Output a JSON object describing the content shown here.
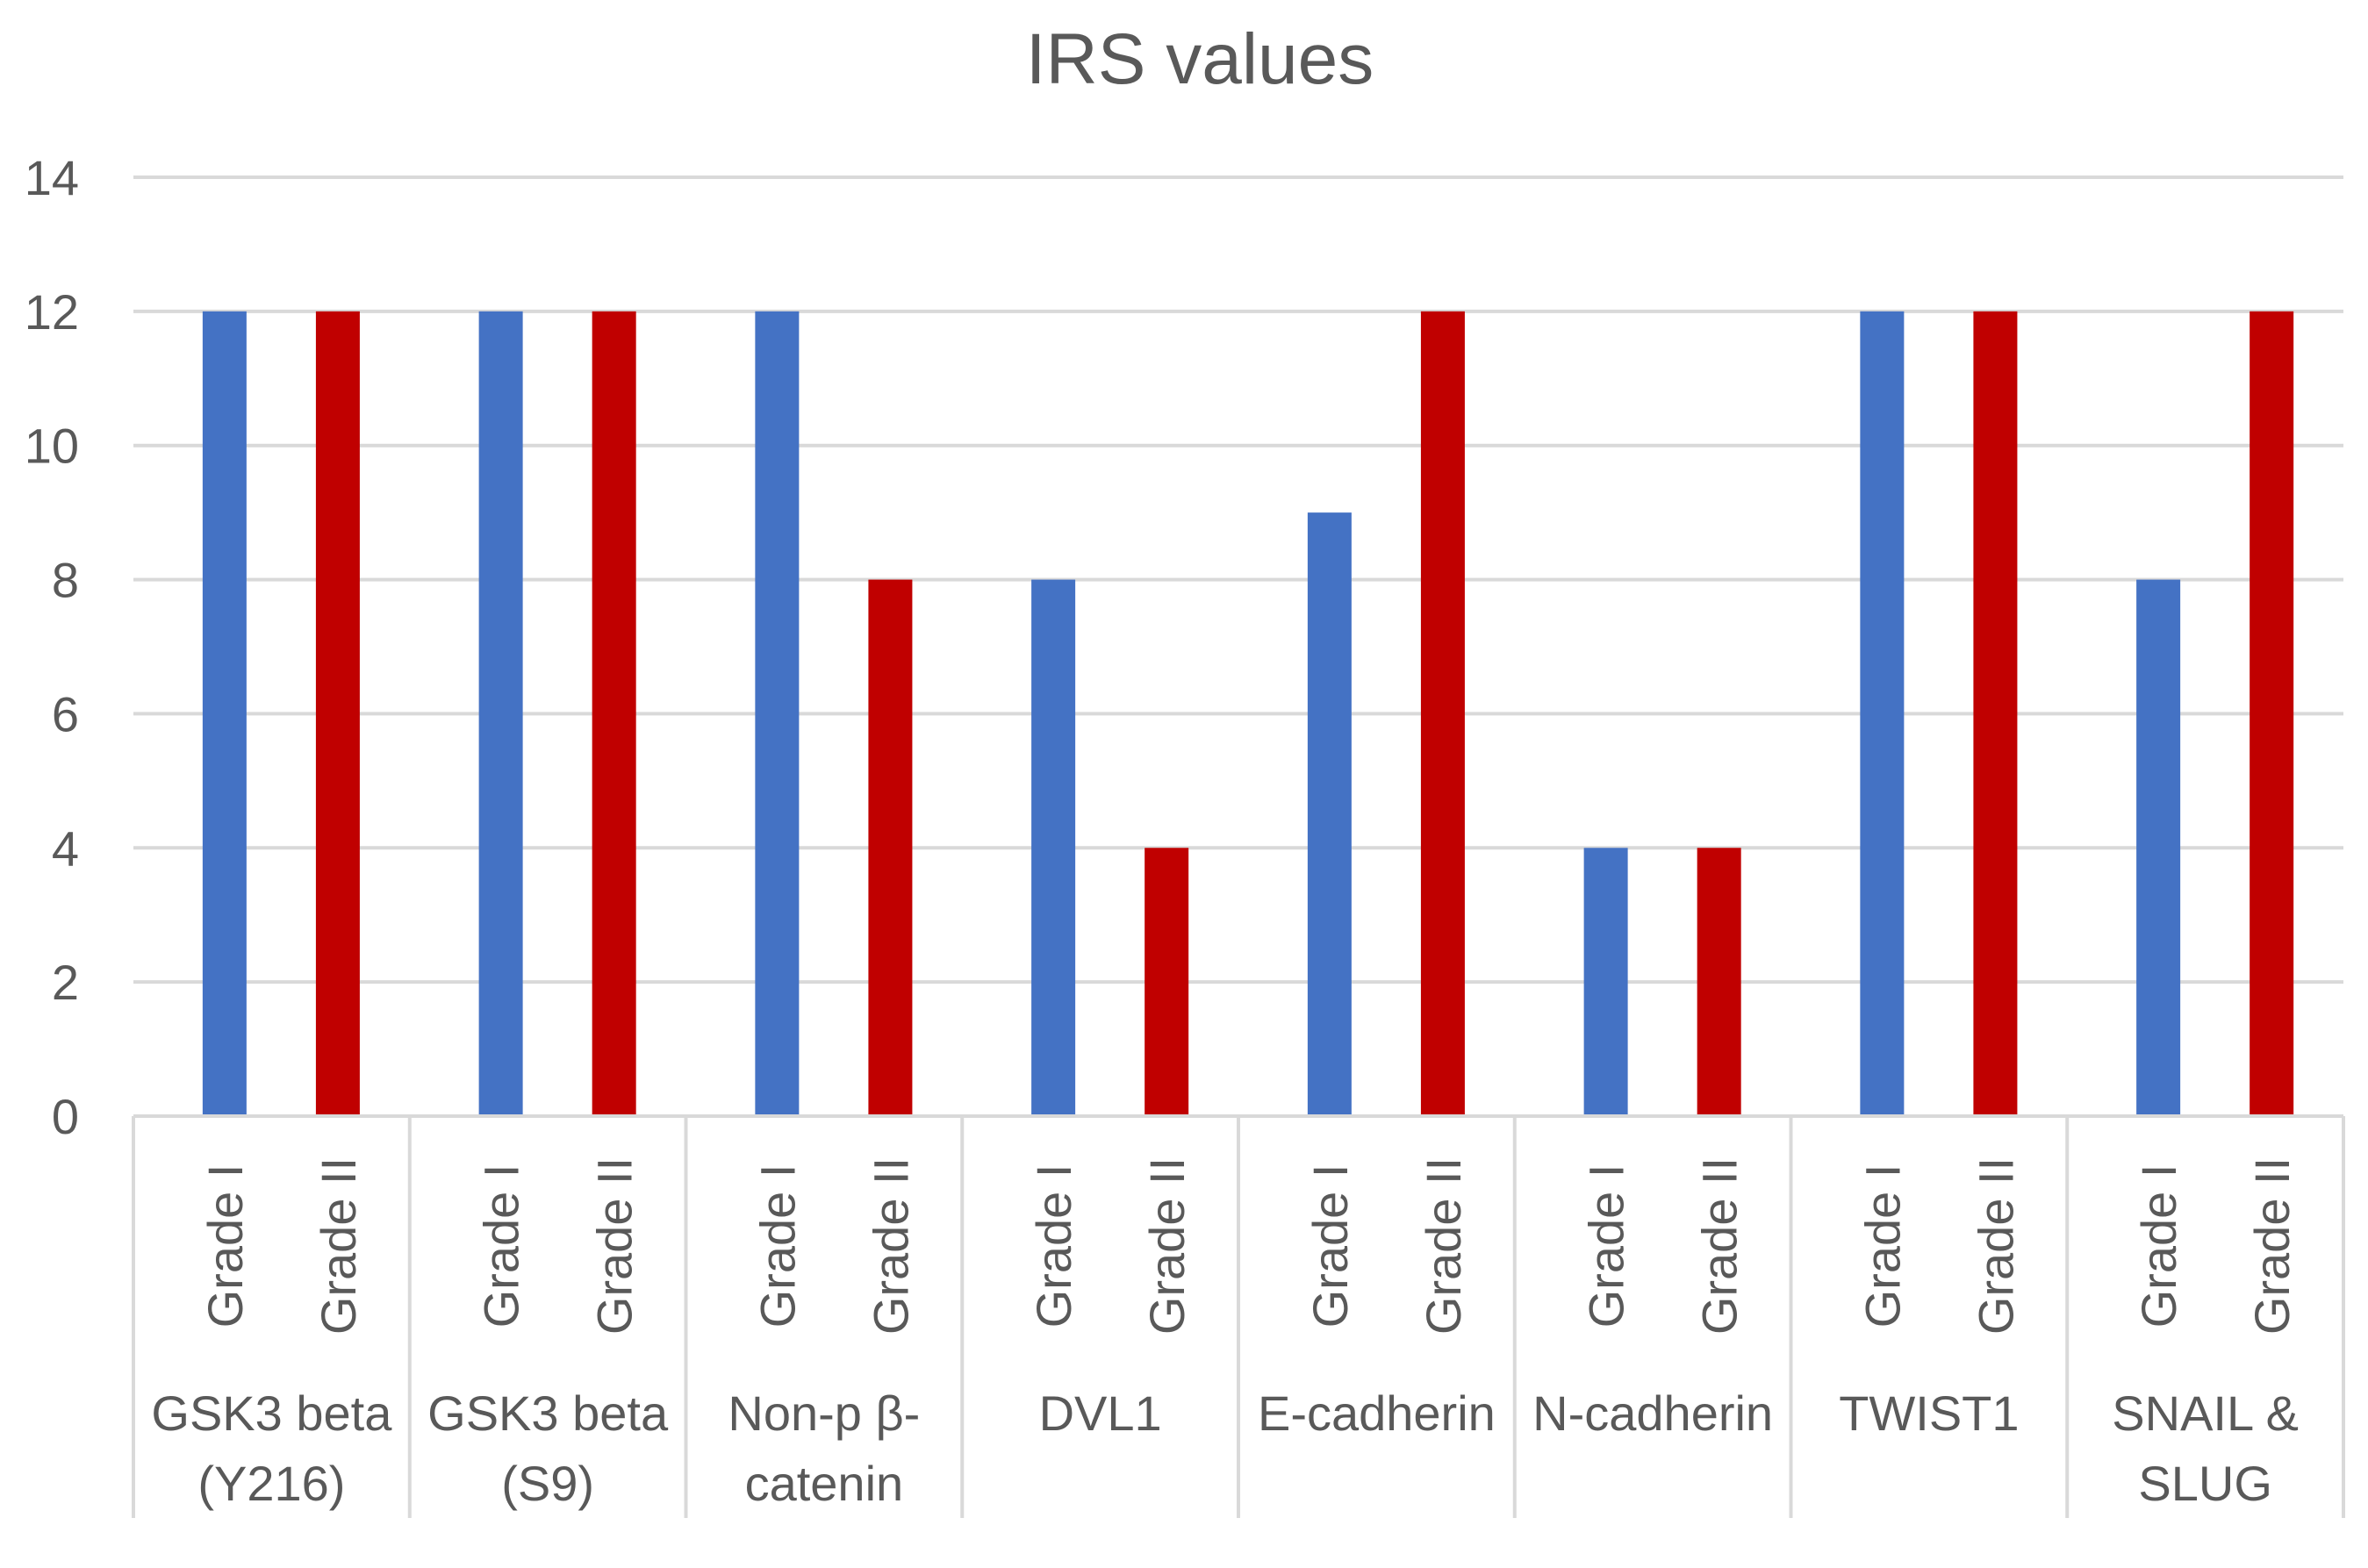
{
  "chart_data": {
    "type": "bar",
    "title": "IRS values",
    "xlabel": "",
    "ylabel": "",
    "ylim": [
      0,
      14
    ],
    "yticks": [
      0,
      2,
      4,
      6,
      8,
      10,
      12,
      14
    ],
    "grid": true,
    "legend": "none",
    "groups": [
      {
        "label_lines": [
          "GSK3 beta",
          "(Y216)"
        ],
        "bars": [
          {
            "label": "Grade I",
            "value": 12
          },
          {
            "label": "Grade II",
            "value": 12
          }
        ]
      },
      {
        "label_lines": [
          "GSK3 beta",
          "(S9)"
        ],
        "bars": [
          {
            "label": "Grade I",
            "value": 12
          },
          {
            "label": "Grade II",
            "value": 12
          }
        ]
      },
      {
        "label_lines": [
          "Non-p β-",
          "catenin"
        ],
        "bars": [
          {
            "label": "Grade I",
            "value": 12
          },
          {
            "label": "Grade II",
            "value": 8
          }
        ]
      },
      {
        "label_lines": [
          "DVL1"
        ],
        "bars": [
          {
            "label": "Grade I",
            "value": 8
          },
          {
            "label": "Grade II",
            "value": 4
          }
        ]
      },
      {
        "label_lines": [
          "E-cadherin"
        ],
        "bars": [
          {
            "label": "Grade I",
            "value": 9
          },
          {
            "label": "Grade II",
            "value": 12
          }
        ]
      },
      {
        "label_lines": [
          "N-cadherin"
        ],
        "bars": [
          {
            "label": "Grade I",
            "value": 4
          },
          {
            "label": "Grade II",
            "value": 4
          }
        ]
      },
      {
        "label_lines": [
          "TWIST1"
        ],
        "bars": [
          {
            "label": "Grade I",
            "value": 12
          },
          {
            "label": "Grade II",
            "value": 12
          }
        ]
      },
      {
        "label_lines": [
          "SNAIL &",
          "SLUG"
        ],
        "bars": [
          {
            "label": "Grade I",
            "value": 8
          },
          {
            "label": "Grade II",
            "value": 12
          }
        ]
      }
    ],
    "colors": {
      "Grade I": "#4472C4",
      "Grade II": "#C00000"
    }
  }
}
